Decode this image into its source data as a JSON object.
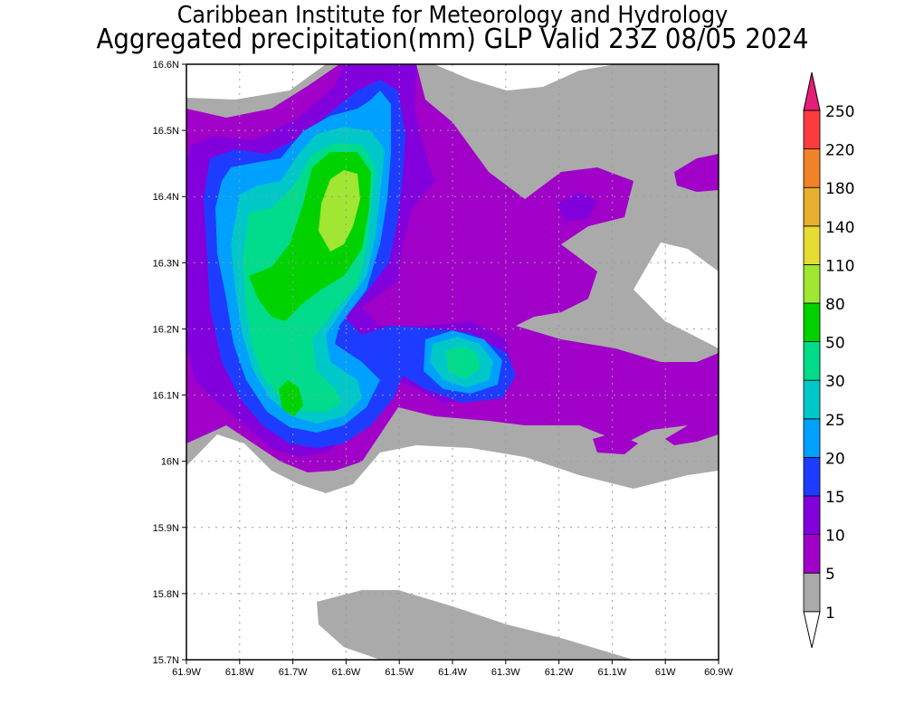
{
  "title": {
    "line1": "Caribbean Institute for Meteorology and Hydrology",
    "line2": "Aggregated precipitation(mm) GLP Valid 23Z 08/05 2024"
  },
  "axes": {
    "x_ticks": [
      "61.9W",
      "61.8W",
      "61.7W",
      "61.6W",
      "61.5W",
      "61.4W",
      "61.3W",
      "61.2W",
      "61.1W",
      "61W",
      "60.9W"
    ],
    "y_ticks": [
      "15.7N",
      "15.8N",
      "15.9N",
      "16N",
      "16.1N",
      "16.2N",
      "16.3N",
      "16.4N",
      "16.5N",
      "16.6N"
    ],
    "lon_range": [
      -61.9,
      -60.9
    ],
    "lat_range": [
      15.7,
      16.6
    ]
  },
  "colorbar": {
    "levels": [
      "1",
      "5",
      "10",
      "15",
      "20",
      "25",
      "30",
      "50",
      "80",
      "110",
      "140",
      "180",
      "220",
      "250"
    ],
    "colors": [
      "#aaaaaa",
      "#a000c8",
      "#8200dc",
      "#1e3cff",
      "#00a0ff",
      "#00c8c8",
      "#00dc8c",
      "#00d200",
      "#a0e632",
      "#e6dc32",
      "#e6af2d",
      "#f08228",
      "#fa3c3c",
      "#e61e78"
    ],
    "under_color": "#ffffff"
  }
}
